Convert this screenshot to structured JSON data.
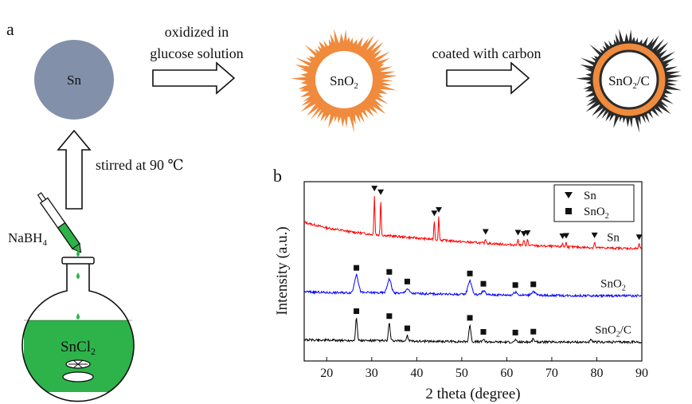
{
  "panels": {
    "a": "a",
    "b": "b"
  },
  "scheme": {
    "sn_label": "Sn",
    "step1_line1": "oxidized in",
    "step1_line2": "glucose solution",
    "sno2_label_base": "SnO",
    "sno2_label_sub": "2",
    "step2_label": "coated with carbon",
    "snoc_label_base": "SnO",
    "snoc_label_sub": "2",
    "snoc_label_tail": "/C",
    "stir_label": "stirred at 90 ℃",
    "reducer_base": "NaBH",
    "reducer_sub": "4",
    "precursor_base": "SnCl",
    "precursor_sub": "2",
    "colors": {
      "sn_sphere": "#8290AA",
      "sno2_shell": "#F08A3C",
      "carbon": "#3a3a3a",
      "solution": "#2DB34A",
      "pipette": "#2DB34A"
    }
  },
  "chart_data": {
    "type": "line",
    "xlabel": "2 theta (degree)",
    "ylabel": "Intensity (a.u.)",
    "xlim": [
      15,
      90
    ],
    "xticks": [
      20,
      30,
      40,
      50,
      60,
      70,
      80,
      90
    ],
    "grid": false,
    "legend": {
      "placement": "top-right",
      "entries": [
        {
          "marker": "triangle-down",
          "label_base": "Sn",
          "label_sub": ""
        },
        {
          "marker": "square",
          "label_base": "SnO",
          "label_sub": "2"
        }
      ]
    },
    "series": [
      {
        "name_base": "Sn",
        "name_sub": "",
        "name_tail": "",
        "color": "#ff0000",
        "offset": 2.0,
        "background": [
          [
            15,
            0.62
          ],
          [
            20,
            0.5
          ],
          [
            25,
            0.42
          ],
          [
            30,
            0.36
          ],
          [
            40,
            0.28
          ],
          [
            50,
            0.2
          ],
          [
            60,
            0.14
          ],
          [
            70,
            0.1
          ],
          [
            80,
            0.07
          ],
          [
            90,
            0.05
          ]
        ],
        "peaks": [
          [
            30.6,
            0.85,
            0.25
          ],
          [
            32.0,
            0.78,
            0.25
          ],
          [
            43.9,
            0.42,
            0.25
          ],
          [
            44.9,
            0.5,
            0.25
          ],
          [
            55.3,
            0.1,
            0.3
          ],
          [
            62.5,
            0.12,
            0.3
          ],
          [
            63.8,
            0.1,
            0.3
          ],
          [
            64.6,
            0.12,
            0.3
          ],
          [
            72.4,
            0.08,
            0.3
          ],
          [
            73.2,
            0.09,
            0.3
          ],
          [
            79.5,
            0.12,
            0.3
          ],
          [
            89.4,
            0.1,
            0.3
          ]
        ],
        "markers": [
          [
            30.6,
            "tri"
          ],
          [
            32.0,
            "tri"
          ],
          [
            43.9,
            "tri"
          ],
          [
            44.9,
            "tri"
          ],
          [
            55.3,
            "tri"
          ],
          [
            62.5,
            "tri"
          ],
          [
            63.8,
            "tri"
          ],
          [
            64.6,
            "tri"
          ],
          [
            72.4,
            "tri"
          ],
          [
            73.2,
            "tri"
          ],
          [
            79.5,
            "tri"
          ],
          [
            89.4,
            "tri"
          ]
        ]
      },
      {
        "name_base": "SnO",
        "name_sub": "2",
        "name_tail": "",
        "color": "#0000ff",
        "offset": 1.0,
        "background": [
          [
            15,
            0.12
          ],
          [
            20,
            0.1
          ],
          [
            30,
            0.1
          ],
          [
            40,
            0.08
          ],
          [
            50,
            0.06
          ],
          [
            60,
            0.05
          ],
          [
            70,
            0.04
          ],
          [
            80,
            0.03
          ],
          [
            90,
            0.03
          ]
        ],
        "peaks": [
          [
            26.6,
            0.38,
            1.0
          ],
          [
            33.9,
            0.3,
            1.0
          ],
          [
            37.9,
            0.1,
            0.9
          ],
          [
            51.8,
            0.3,
            1.0
          ],
          [
            54.8,
            0.08,
            0.9
          ],
          [
            61.9,
            0.06,
            0.9
          ],
          [
            65.9,
            0.08,
            1.0
          ]
        ],
        "markers": [
          [
            26.6,
            "sq"
          ],
          [
            33.9,
            "sq"
          ],
          [
            37.9,
            "sq"
          ],
          [
            51.8,
            "sq"
          ],
          [
            54.8,
            "sq"
          ],
          [
            61.9,
            "sq"
          ],
          [
            65.9,
            "sq"
          ]
        ]
      },
      {
        "name_base": "SnO",
        "name_sub": "2",
        "name_tail": "/C",
        "color": "#000000",
        "offset": 0.0,
        "background": [
          [
            15,
            0.08
          ],
          [
            20,
            0.07
          ],
          [
            30,
            0.06
          ],
          [
            40,
            0.05
          ],
          [
            50,
            0.04
          ],
          [
            60,
            0.03
          ],
          [
            70,
            0.03
          ],
          [
            80,
            0.03
          ],
          [
            90,
            0.03
          ]
        ],
        "peaks": [
          [
            26.6,
            0.48,
            0.45
          ],
          [
            33.9,
            0.38,
            0.45
          ],
          [
            37.9,
            0.12,
            0.4
          ],
          [
            51.8,
            0.36,
            0.5
          ],
          [
            54.8,
            0.06,
            0.4
          ],
          [
            61.9,
            0.05,
            0.4
          ],
          [
            65.9,
            0.07,
            0.5
          ],
          [
            78.7,
            0.04,
            0.5
          ]
        ],
        "markers": [
          [
            26.6,
            "sq"
          ],
          [
            33.9,
            "sq"
          ],
          [
            37.9,
            "sq"
          ],
          [
            51.8,
            "sq"
          ],
          [
            54.8,
            "sq"
          ],
          [
            61.9,
            "sq"
          ],
          [
            65.9,
            "sq"
          ]
        ]
      }
    ]
  }
}
